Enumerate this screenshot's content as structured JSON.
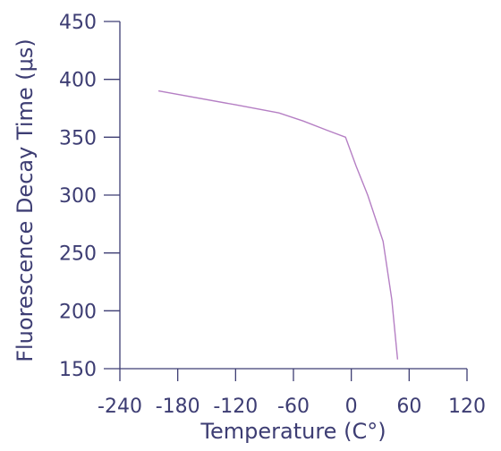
{
  "chart_data": {
    "type": "line",
    "title": "",
    "xlabel": "Temperature (C°)",
    "ylabel": "Fluorescence Decay Time (μs)",
    "xlim": [
      -240,
      120
    ],
    "ylim": [
      150,
      450
    ],
    "xticks": [
      -240,
      -180,
      -120,
      -60,
      0,
      60,
      120
    ],
    "yticks": [
      150,
      200,
      250,
      300,
      350,
      400,
      450
    ],
    "grid": false,
    "legend": "none",
    "series": [
      {
        "color": "#b57fc4",
        "x": [
          -200,
          -120,
          -75,
          -50,
          -25,
          -6,
          5,
          17,
          25,
          33,
          42,
          48
        ],
        "y": [
          390,
          378,
          371,
          364,
          356,
          350,
          325,
          300,
          280,
          260,
          210,
          158
        ]
      }
    ]
  }
}
